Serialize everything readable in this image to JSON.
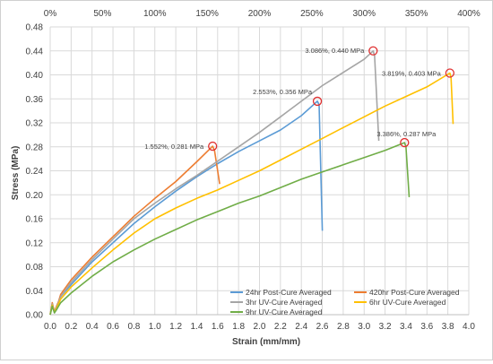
{
  "chart_data": {
    "type": "line",
    "title": "",
    "xlabel": "Strain (mm/mm)",
    "ylabel": "Stress (MPa)",
    "xlim": [
      0,
      4.0
    ],
    "ylim": [
      0,
      0.48
    ],
    "x_ticks": [
      "0.0",
      "0.2",
      "0.4",
      "0.6",
      "0.8",
      "1.0",
      "1.2",
      "1.4",
      "1.6",
      "1.8",
      "2.0",
      "2.2",
      "2.4",
      "2.6",
      "2.8",
      "3.0",
      "3.2",
      "3.4",
      "3.6",
      "3.8",
      "4.0"
    ],
    "y_ticks": [
      "0.00",
      "0.04",
      "0.08",
      "0.12",
      "0.16",
      "0.20",
      "0.24",
      "0.28",
      "0.32",
      "0.36",
      "0.40",
      "0.44",
      "0.48"
    ],
    "top_ticks": [
      "0%",
      "50%",
      "100%",
      "150%",
      "200%",
      "250%",
      "300%",
      "350%",
      "400%"
    ],
    "grid": true,
    "legend_position": "bottom-right",
    "series": [
      {
        "name": "24hr Post-Cure Averaged",
        "color": "#5b9bd5",
        "points": [
          [
            0,
            0
          ],
          [
            0.02,
            0.018
          ],
          [
            0.04,
            0.004
          ],
          [
            0.06,
            0.012
          ],
          [
            0.08,
            0.02
          ],
          [
            0.1,
            0.03
          ],
          [
            0.2,
            0.05
          ],
          [
            0.4,
            0.088
          ],
          [
            0.6,
            0.12
          ],
          [
            0.8,
            0.152
          ],
          [
            1.0,
            0.18
          ],
          [
            1.2,
            0.206
          ],
          [
            1.4,
            0.23
          ],
          [
            1.6,
            0.252
          ],
          [
            1.8,
            0.272
          ],
          [
            2.0,
            0.29
          ],
          [
            2.2,
            0.308
          ],
          [
            2.4,
            0.332
          ],
          [
            2.553,
            0.356
          ],
          [
            2.57,
            0.35
          ],
          [
            2.6,
            0.14
          ]
        ]
      },
      {
        "name": "420hr Post-Cure Averaged",
        "color": "#ed7d31",
        "points": [
          [
            0,
            0
          ],
          [
            0.02,
            0.02
          ],
          [
            0.04,
            0.005
          ],
          [
            0.06,
            0.014
          ],
          [
            0.08,
            0.022
          ],
          [
            0.1,
            0.034
          ],
          [
            0.2,
            0.058
          ],
          [
            0.4,
            0.096
          ],
          [
            0.6,
            0.13
          ],
          [
            0.8,
            0.164
          ],
          [
            1.0,
            0.194
          ],
          [
            1.2,
            0.222
          ],
          [
            1.4,
            0.255
          ],
          [
            1.552,
            0.281
          ],
          [
            1.57,
            0.274
          ],
          [
            1.62,
            0.218
          ]
        ]
      },
      {
        "name": "3hr UV-Cure Averaged",
        "color": "#a5a5a5",
        "points": [
          [
            0,
            0
          ],
          [
            0.02,
            0.018
          ],
          [
            0.04,
            0.004
          ],
          [
            0.06,
            0.012
          ],
          [
            0.08,
            0.02
          ],
          [
            0.1,
            0.03
          ],
          [
            0.2,
            0.054
          ],
          [
            0.4,
            0.092
          ],
          [
            0.6,
            0.126
          ],
          [
            0.8,
            0.16
          ],
          [
            1.0,
            0.186
          ],
          [
            1.2,
            0.21
          ],
          [
            1.4,
            0.232
          ],
          [
            1.6,
            0.256
          ],
          [
            1.8,
            0.28
          ],
          [
            2.0,
            0.304
          ],
          [
            2.2,
            0.33
          ],
          [
            2.4,
            0.356
          ],
          [
            2.6,
            0.382
          ],
          [
            2.8,
            0.404
          ],
          [
            3.0,
            0.426
          ],
          [
            3.086,
            0.44
          ],
          [
            3.1,
            0.432
          ],
          [
            3.14,
            0.29
          ]
        ]
      },
      {
        "name": "6hr UV-Cure Averaged",
        "color": "#ffc000",
        "points": [
          [
            0,
            0
          ],
          [
            0.02,
            0.016
          ],
          [
            0.04,
            0.004
          ],
          [
            0.06,
            0.01
          ],
          [
            0.08,
            0.018
          ],
          [
            0.1,
            0.026
          ],
          [
            0.2,
            0.046
          ],
          [
            0.4,
            0.078
          ],
          [
            0.6,
            0.108
          ],
          [
            0.8,
            0.136
          ],
          [
            1.0,
            0.16
          ],
          [
            1.2,
            0.178
          ],
          [
            1.4,
            0.194
          ],
          [
            1.6,
            0.208
          ],
          [
            1.8,
            0.224
          ],
          [
            2.0,
            0.24
          ],
          [
            2.2,
            0.258
          ],
          [
            2.4,
            0.276
          ],
          [
            2.6,
            0.294
          ],
          [
            2.8,
            0.312
          ],
          [
            3.0,
            0.33
          ],
          [
            3.2,
            0.348
          ],
          [
            3.4,
            0.364
          ],
          [
            3.6,
            0.38
          ],
          [
            3.819,
            0.403
          ],
          [
            3.83,
            0.395
          ],
          [
            3.85,
            0.318
          ]
        ]
      },
      {
        "name": "9hr UV-Cure Averaged",
        "color": "#70ad47",
        "points": [
          [
            0,
            0
          ],
          [
            0.02,
            0.014
          ],
          [
            0.04,
            0.003
          ],
          [
            0.06,
            0.008
          ],
          [
            0.08,
            0.014
          ],
          [
            0.1,
            0.02
          ],
          [
            0.2,
            0.036
          ],
          [
            0.4,
            0.064
          ],
          [
            0.6,
            0.088
          ],
          [
            0.8,
            0.108
          ],
          [
            1.0,
            0.126
          ],
          [
            1.2,
            0.142
          ],
          [
            1.4,
            0.158
          ],
          [
            1.6,
            0.172
          ],
          [
            1.8,
            0.186
          ],
          [
            2.0,
            0.198
          ],
          [
            2.2,
            0.212
          ],
          [
            2.4,
            0.226
          ],
          [
            2.6,
            0.238
          ],
          [
            2.8,
            0.25
          ],
          [
            3.0,
            0.262
          ],
          [
            3.2,
            0.274
          ],
          [
            3.386,
            0.287
          ],
          [
            3.4,
            0.28
          ],
          [
            3.43,
            0.196
          ]
        ]
      }
    ],
    "annotations": [
      {
        "text": "1.552%, 0.281 MPa",
        "x": 1.552,
        "y": 0.281,
        "series": 1
      },
      {
        "text": "2.553%, 0.356 MPa",
        "x": 2.553,
        "y": 0.356,
        "series": 0
      },
      {
        "text": "3.086%, 0.440 MPa",
        "x": 3.086,
        "y": 0.44,
        "series": 2
      },
      {
        "text": "3.819%, 0.403 MPa",
        "x": 3.819,
        "y": 0.403,
        "series": 3
      },
      {
        "text": "3.386%, 0.287 MPa",
        "x": 3.386,
        "y": 0.287,
        "series": 4
      }
    ],
    "marker_color": "#e03030"
  }
}
